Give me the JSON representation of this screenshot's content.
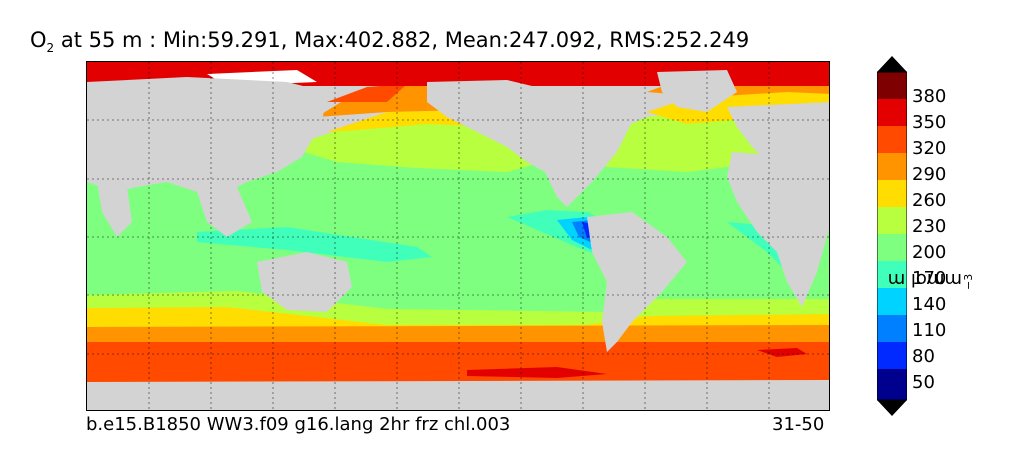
{
  "title": {
    "species": "O",
    "subscript": "2",
    "rest": " at 55 m : Min:59.291, Max:402.882, Mean:247.092, RMS:252.249"
  },
  "footer": {
    "case_name": "b.e15.B1850 WW3.f09 g16.lang 2hr frz chl.003",
    "years": "31-50"
  },
  "colorbar": {
    "label_text": "mmol m",
    "label_exponent": "−3",
    "ticks": [
      "380",
      "350",
      "320",
      "290",
      "260",
      "230",
      "200",
      "170",
      "140",
      "110",
      "80",
      "50"
    ],
    "colors": [
      "#7f0000",
      "#e30000",
      "#ff4a00",
      "#ff9400",
      "#ffdd00",
      "#b8ff3f",
      "#7fff7f",
      "#3fffbb",
      "#00d3ff",
      "#0080ff",
      "#002aff",
      "#00008f"
    ]
  },
  "colors": {
    "land": "#d3d3d3",
    "ice": "#ffffff",
    "band_380": "#e30000",
    "band_350": "#ff4a00",
    "band_320": "#ff9400",
    "band_290": "#ffdd00",
    "band_260": "#b8ff3f",
    "band_230": "#7fff7f",
    "band_200": "#3fffbb",
    "band_170": "#00d3ff",
    "band_140": "#0080ff",
    "band_110": "#002aff"
  }
}
